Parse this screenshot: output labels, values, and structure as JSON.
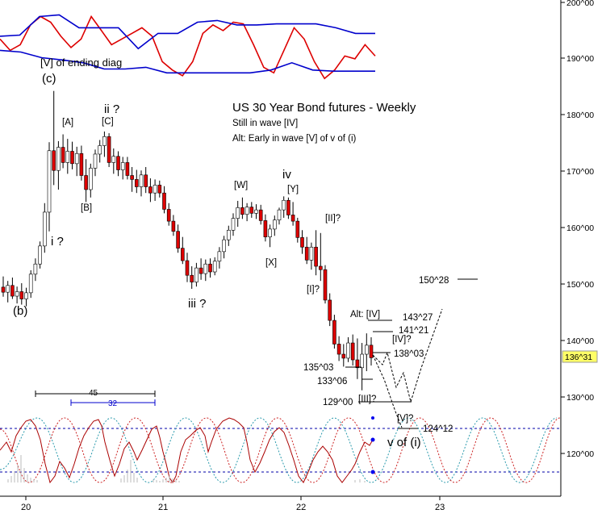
{
  "chart_data": {
    "type": "candlestick",
    "title": "US 30 Year Bond futures - Weekly",
    "subtitle_lines": [
      "Still in wave [IV]",
      "Alt: Early in wave [V] of v of (i)"
    ],
    "x_axis": {
      "ticks": [
        "20",
        "21",
        "22",
        "23"
      ]
    },
    "y_axis": {
      "ticks": [
        "200^00",
        "190^00",
        "180^00",
        "170^00",
        "160^00",
        "150^00",
        "140^00",
        "130^00",
        "120^00"
      ],
      "tick_values": [
        200,
        190,
        180,
        170,
        160,
        150,
        140,
        130,
        120
      ],
      "range": [
        113,
        201
      ]
    },
    "last_price_label": "136^31",
    "last_price": 136.97,
    "candles": [
      {
        "o": 149.5,
        "h": 151.4,
        "l": 147.8,
        "c": 148.6
      },
      {
        "o": 148.6,
        "h": 150.6,
        "l": 146.8,
        "c": 149.8
      },
      {
        "o": 149.8,
        "h": 151.2,
        "l": 147.4,
        "c": 147.9
      },
      {
        "o": 147.9,
        "h": 149.6,
        "l": 146.6,
        "c": 148.7
      },
      {
        "o": 148.7,
        "h": 150.2,
        "l": 146.4,
        "c": 147.4
      },
      {
        "o": 147.4,
        "h": 149.4,
        "l": 146.1,
        "c": 148.5
      },
      {
        "o": 148.5,
        "h": 152.5,
        "l": 147.6,
        "c": 151.8
      },
      {
        "o": 151.8,
        "h": 154.6,
        "l": 150.6,
        "c": 153.6
      },
      {
        "o": 153.6,
        "h": 157.6,
        "l": 152.8,
        "c": 156.8
      },
      {
        "o": 156.8,
        "h": 164.4,
        "l": 155.6,
        "c": 162.8
      },
      {
        "o": 162.8,
        "h": 175.2,
        "l": 159.4,
        "c": 173.7
      },
      {
        "o": 173.7,
        "h": 184.3,
        "l": 167.6,
        "c": 170.2
      },
      {
        "o": 170.2,
        "h": 175.4,
        "l": 166.8,
        "c": 174.3
      },
      {
        "o": 174.3,
        "h": 176.6,
        "l": 170.6,
        "c": 171.6
      },
      {
        "o": 171.6,
        "h": 175.8,
        "l": 169.6,
        "c": 173.6
      },
      {
        "o": 173.6,
        "h": 175.3,
        "l": 170.4,
        "c": 171.4
      },
      {
        "o": 171.4,
        "h": 174.4,
        "l": 169.2,
        "c": 173.2
      },
      {
        "o": 173.2,
        "h": 174.6,
        "l": 168.4,
        "c": 169.3
      },
      {
        "o": 169.3,
        "h": 172.2,
        "l": 164.6,
        "c": 166.8
      },
      {
        "o": 166.8,
        "h": 171.4,
        "l": 165.4,
        "c": 170.6
      },
      {
        "o": 170.6,
        "h": 173.9,
        "l": 169.2,
        "c": 173.1
      },
      {
        "o": 173.1,
        "h": 175.6,
        "l": 171.6,
        "c": 174.6
      },
      {
        "o": 174.6,
        "h": 177.1,
        "l": 172.6,
        "c": 176.2
      },
      {
        "o": 176.2,
        "h": 176.8,
        "l": 170.8,
        "c": 171.6
      },
      {
        "o": 171.6,
        "h": 174.1,
        "l": 169.6,
        "c": 172.7
      },
      {
        "o": 172.7,
        "h": 173.6,
        "l": 169.2,
        "c": 170.3
      },
      {
        "o": 170.3,
        "h": 172.6,
        "l": 168.6,
        "c": 171.6
      },
      {
        "o": 171.6,
        "h": 172.6,
        "l": 168.6,
        "c": 169.3
      },
      {
        "o": 169.3,
        "h": 170.8,
        "l": 166.4,
        "c": 168.6
      },
      {
        "o": 168.6,
        "h": 170.3,
        "l": 166.2,
        "c": 167.3
      },
      {
        "o": 167.3,
        "h": 170.2,
        "l": 165.6,
        "c": 169.4
      },
      {
        "o": 169.4,
        "h": 170.8,
        "l": 166.2,
        "c": 167.3
      },
      {
        "o": 167.3,
        "h": 168.8,
        "l": 164.6,
        "c": 166.2
      },
      {
        "o": 166.2,
        "h": 168.6,
        "l": 164.8,
        "c": 167.6
      },
      {
        "o": 167.6,
        "h": 168.4,
        "l": 165.4,
        "c": 166.2
      },
      {
        "o": 166.2,
        "h": 167.4,
        "l": 162.6,
        "c": 163.3
      },
      {
        "o": 163.3,
        "h": 164.4,
        "l": 160.4,
        "c": 161.2
      },
      {
        "o": 161.2,
        "h": 162.3,
        "l": 158.6,
        "c": 159.4
      },
      {
        "o": 159.4,
        "h": 160.6,
        "l": 155.6,
        "c": 156.4
      },
      {
        "o": 156.4,
        "h": 158.4,
        "l": 153.6,
        "c": 154.2
      },
      {
        "o": 154.2,
        "h": 155.6,
        "l": 150.4,
        "c": 151.6
      },
      {
        "o": 151.6,
        "h": 153.2,
        "l": 149.2,
        "c": 150.4
      },
      {
        "o": 150.4,
        "h": 153.8,
        "l": 149.6,
        "c": 152.9
      },
      {
        "o": 152.9,
        "h": 154.6,
        "l": 150.8,
        "c": 151.9
      },
      {
        "o": 151.9,
        "h": 154.4,
        "l": 150.6,
        "c": 153.6
      },
      {
        "o": 153.6,
        "h": 154.6,
        "l": 151.2,
        "c": 152.2
      },
      {
        "o": 152.2,
        "h": 154.8,
        "l": 151.6,
        "c": 154.1
      },
      {
        "o": 154.1,
        "h": 156.6,
        "l": 152.8,
        "c": 155.8
      },
      {
        "o": 155.8,
        "h": 158.6,
        "l": 154.6,
        "c": 157.9
      },
      {
        "o": 157.9,
        "h": 160.4,
        "l": 156.8,
        "c": 159.6
      },
      {
        "o": 159.6,
        "h": 162.6,
        "l": 158.6,
        "c": 161.7
      },
      {
        "o": 161.7,
        "h": 164.8,
        "l": 160.2,
        "c": 163.6
      },
      {
        "o": 163.6,
        "h": 165.4,
        "l": 161.6,
        "c": 162.4
      },
      {
        "o": 162.4,
        "h": 164.4,
        "l": 161.2,
        "c": 163.7
      },
      {
        "o": 163.7,
        "h": 164.6,
        "l": 161.8,
        "c": 162.6
      },
      {
        "o": 162.6,
        "h": 164.2,
        "l": 161.6,
        "c": 163.2
      },
      {
        "o": 163.2,
        "h": 164.1,
        "l": 160.6,
        "c": 161.3
      },
      {
        "o": 161.3,
        "h": 162.4,
        "l": 157.6,
        "c": 158.4
      },
      {
        "o": 158.4,
        "h": 160.6,
        "l": 156.6,
        "c": 159.8
      },
      {
        "o": 159.8,
        "h": 162.2,
        "l": 158.6,
        "c": 161.4
      },
      {
        "o": 161.4,
        "h": 163.6,
        "l": 160.6,
        "c": 163.2
      },
      {
        "o": 163.2,
        "h": 165.6,
        "l": 161.8,
        "c": 164.9
      },
      {
        "o": 164.9,
        "h": 165.4,
        "l": 161.6,
        "c": 162.3
      },
      {
        "o": 162.3,
        "h": 164.6,
        "l": 160.4,
        "c": 161.2
      },
      {
        "o": 161.2,
        "h": 161.8,
        "l": 157.4,
        "c": 158.3
      },
      {
        "o": 158.3,
        "h": 159.6,
        "l": 155.4,
        "c": 156.6
      },
      {
        "o": 156.6,
        "h": 158.4,
        "l": 153.6,
        "c": 154.3
      },
      {
        "o": 154.3,
        "h": 157.4,
        "l": 152.6,
        "c": 156.6
      },
      {
        "o": 156.6,
        "h": 159.6,
        "l": 151.6,
        "c": 153.2
      },
      {
        "o": 153.2,
        "h": 159.1,
        "l": 150.6,
        "c": 152.6
      },
      {
        "o": 152.6,
        "h": 153.4,
        "l": 146.6,
        "c": 147.2
      },
      {
        "o": 147.2,
        "h": 148.4,
        "l": 142.6,
        "c": 143.6
      },
      {
        "o": 143.6,
        "h": 144.6,
        "l": 138.6,
        "c": 139.4
      },
      {
        "o": 139.4,
        "h": 140.8,
        "l": 136.4,
        "c": 137.6
      },
      {
        "o": 137.6,
        "h": 139.4,
        "l": 135.4,
        "c": 136.9
      },
      {
        "o": 136.9,
        "h": 140.6,
        "l": 136.2,
        "c": 139.6
      },
      {
        "o": 139.6,
        "h": 141.1,
        "l": 135.6,
        "c": 136.6
      },
      {
        "o": 136.6,
        "h": 140.4,
        "l": 133.2,
        "c": 135.2
      },
      {
        "o": 135.2,
        "h": 139.6,
        "l": 131.2,
        "c": 137.6
      },
      {
        "o": 137.6,
        "h": 141.3,
        "l": 134.6,
        "c": 139.2
      },
      {
        "o": 139.2,
        "h": 140.6,
        "l": 135.6,
        "c": 136.97
      }
    ],
    "wave_labels": [
      "[V] of ending diag",
      "(c)",
      "ii ?",
      "[A]",
      "[C]",
      "[B]",
      "i ?",
      "(b)",
      "iii ?",
      "[W]",
      "iv",
      "[Y]",
      "[X]",
      "[II]?",
      "[I]?",
      "Alt: [IV]",
      "[IV]?",
      "143^27",
      "141^21",
      "138^03",
      "135^03",
      "133^06",
      "129^00",
      "[III]?",
      "[V]?",
      "124^12",
      "v of (i)",
      "150^28",
      "45",
      "32"
    ],
    "projections": [
      {
        "label": "150^28",
        "value": 150.875
      },
      {
        "label": "143^27",
        "value": 143.84
      },
      {
        "label": "141^21",
        "value": 141.66
      },
      {
        "label": "138^03",
        "value": 138.09
      },
      {
        "label": "135^03",
        "value": 135.09
      },
      {
        "label": "133^06",
        "value": 133.19
      },
      {
        "label": "129^00",
        "value": 129.0
      },
      {
        "label": "124^12",
        "value": 124.375
      }
    ],
    "upper_indicator": {
      "series": [
        {
          "name": "",
          "color": "#dd0000",
          "values": [
            193.5,
            191.5,
            192.5,
            196.0,
            197.5,
            196.5,
            194.0,
            192.0,
            193.5,
            197.5,
            195.0,
            192.5,
            193.5,
            194.5,
            195.5,
            194.0,
            189.5,
            188.0,
            187.0,
            189.5,
            194.5,
            196.0,
            195.0,
            196.5,
            196.2,
            192.5,
            188.5,
            187.5,
            191.5,
            195.5,
            193.5,
            189.5,
            186.5,
            188.0,
            190.5,
            190.0,
            192.5,
            190.5
          ]
        },
        {
          "name": "",
          "color": "#0000cc",
          "values": [
            194.0,
            194.2,
            197.5,
            197.8,
            195.5,
            195.5,
            195.5,
            191.8,
            194.5,
            194.5,
            196.5,
            196.8,
            196.0,
            196.0,
            196.2,
            196.2,
            196.2,
            195.5,
            194.5,
            194.5
          ]
        },
        {
          "name": "",
          "color": "#0000cc",
          "values": [
            191.5,
            191.2,
            190.2,
            189.8,
            189.3,
            188.2,
            188.2,
            188.5,
            187.5,
            187.5,
            187.5,
            187.5,
            187.5,
            188.0,
            189.3,
            188.0,
            187.8,
            187.8,
            187.8
          ]
        }
      ]
    },
    "lower_indicator": {
      "series": [
        {
          "name": "",
          "color": "#aa0000",
          "style": "solid"
        },
        {
          "name": "",
          "color": "#cc2222",
          "style": "dotted"
        },
        {
          "name": "",
          "color": "#2299aa",
          "style": "dotted"
        }
      ]
    }
  }
}
